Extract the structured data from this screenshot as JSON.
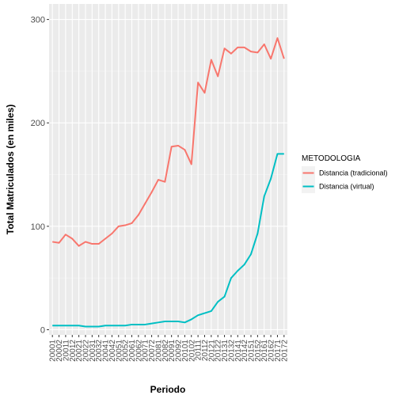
{
  "chart_data": {
    "type": "line",
    "xlabel": "Periodo",
    "ylabel": "Total Matriculados (en miles)",
    "ylim": [
      -5,
      315
    ],
    "yticks": [
      0,
      100,
      200,
      300
    ],
    "grid": true,
    "legend": {
      "title": "METODOLOGIA",
      "placement": "right"
    },
    "x": [
      "20001",
      "20002",
      "20011",
      "20012",
      "20021",
      "20022",
      "20031",
      "20032",
      "20041",
      "20042",
      "20051",
      "20052",
      "20061",
      "20062",
      "20071",
      "20072",
      "20081",
      "20082",
      "20091",
      "20092",
      "20101",
      "20102",
      "20111",
      "20112",
      "20121",
      "20122",
      "20131",
      "20132",
      "20141",
      "20142",
      "20151",
      "20152",
      "20161",
      "20162",
      "20171",
      "20172"
    ],
    "series": [
      {
        "name": "Distancia (tradicional)",
        "color": "#F8766D",
        "values": [
          85,
          84,
          92,
          88,
          81,
          85,
          83,
          83,
          88,
          93,
          100,
          101,
          103,
          111,
          122,
          133,
          145,
          143,
          177,
          178,
          174,
          160,
          239,
          229,
          261,
          245,
          272,
          267,
          273,
          273,
          269,
          268,
          276,
          262,
          282,
          262
        ]
      },
      {
        "name": "Distancia (virtual)",
        "color": "#00BFC4",
        "values": [
          4,
          4,
          4,
          4,
          4,
          3,
          3,
          3,
          4,
          4,
          4,
          4,
          5,
          5,
          5,
          6,
          7,
          8,
          8,
          8,
          7,
          10,
          14,
          16,
          18,
          27,
          32,
          50,
          57,
          63,
          73,
          93,
          129,
          146,
          170,
          170
        ]
      }
    ]
  }
}
